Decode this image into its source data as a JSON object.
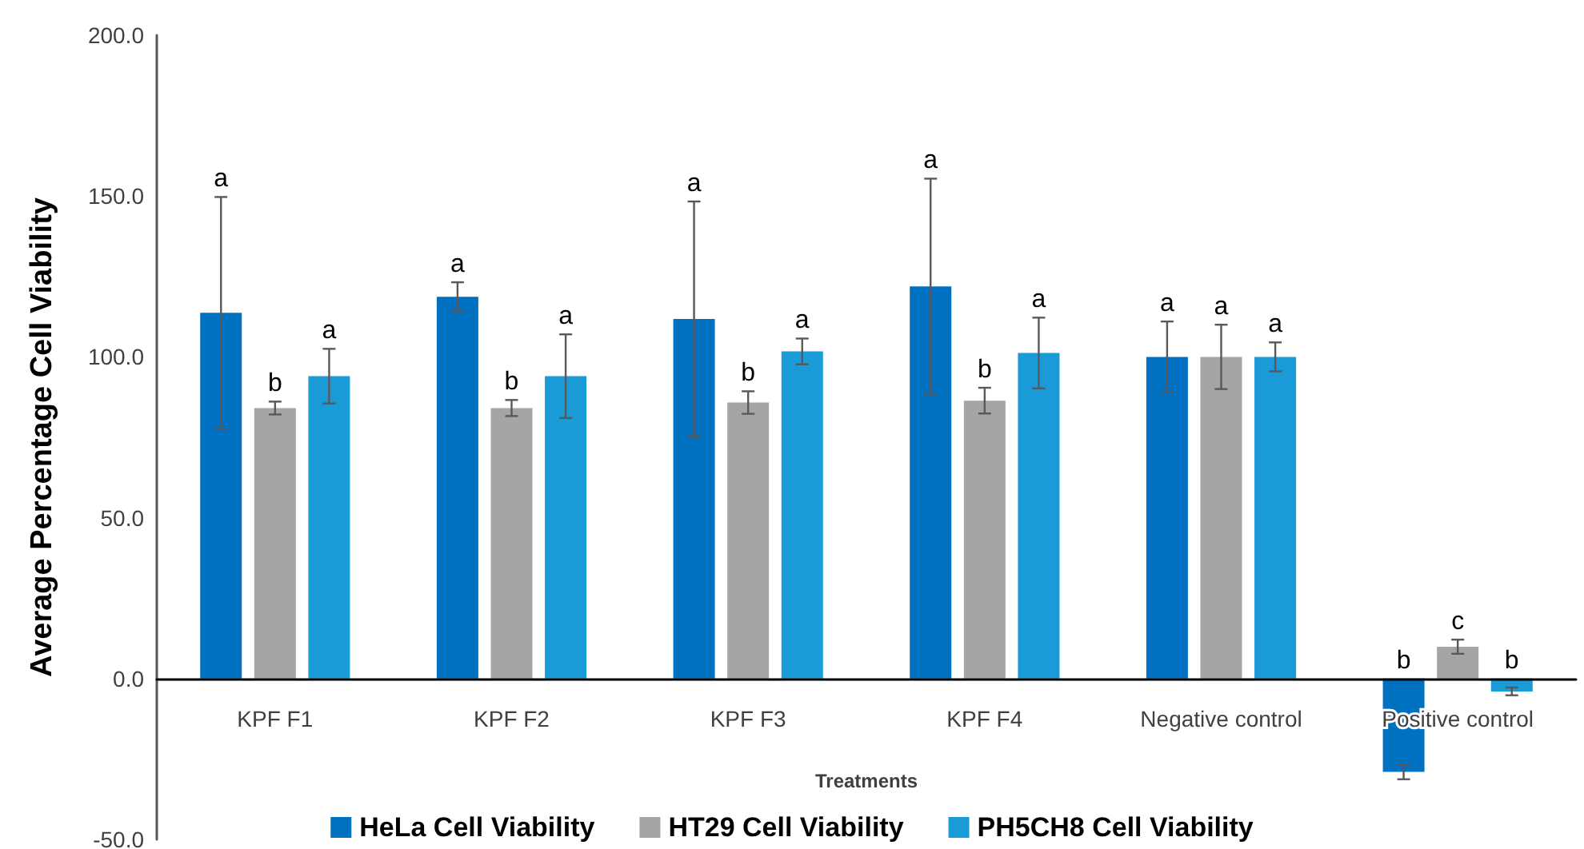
{
  "chart_data": {
    "type": "bar",
    "xlabel": "Treatments",
    "ylabel": "Average Percentage Cell Viability",
    "categories": [
      "KPF F1",
      "KPF F2",
      "KPF F3",
      "KPF F4",
      "Negative control",
      "Positive control"
    ],
    "series": [
      {
        "name": "HeLa Cell Viability",
        "color": "#0070c0",
        "values": [
          113.7,
          118.7,
          111.8,
          121.9,
          100,
          -29
        ],
        "errors": [
          36,
          4.5,
          36.5,
          33.5,
          11,
          2.3
        ]
      },
      {
        "name": "HT29 Cell Viability",
        "color": "#a5a5a5",
        "values": [
          84.1,
          84.1,
          85.8,
          86.4,
          100,
          9.9
        ],
        "errors": [
          2,
          2.5,
          3.5,
          4,
          10,
          2.2
        ]
      },
      {
        "name": "PH5CH8 Cell Viability",
        "color": "#1a9ad6",
        "values": [
          94,
          94,
          101.7,
          101.2,
          100,
          -4
        ],
        "errors": [
          8.5,
          13,
          4,
          11,
          4.5,
          1.2
        ]
      }
    ],
    "ylim": [
      -50,
      200
    ],
    "yticks": [
      {
        "value": -50,
        "label": "-50.0"
      },
      {
        "value": 0,
        "label": "0.0"
      },
      {
        "value": 50,
        "label": "50.0"
      },
      {
        "value": 100,
        "label": "100.0"
      },
      {
        "value": 150,
        "label": "150.0"
      },
      {
        "value": 200,
        "label": "200.0"
      }
    ],
    "annotations": [
      "a",
      "b",
      "a",
      "a",
      "b",
      "a",
      "a",
      "b",
      "a",
      "a",
      "b",
      "a",
      "a",
      "a",
      "a",
      "b",
      "c",
      "b"
    ],
    "legend": "bottom"
  }
}
